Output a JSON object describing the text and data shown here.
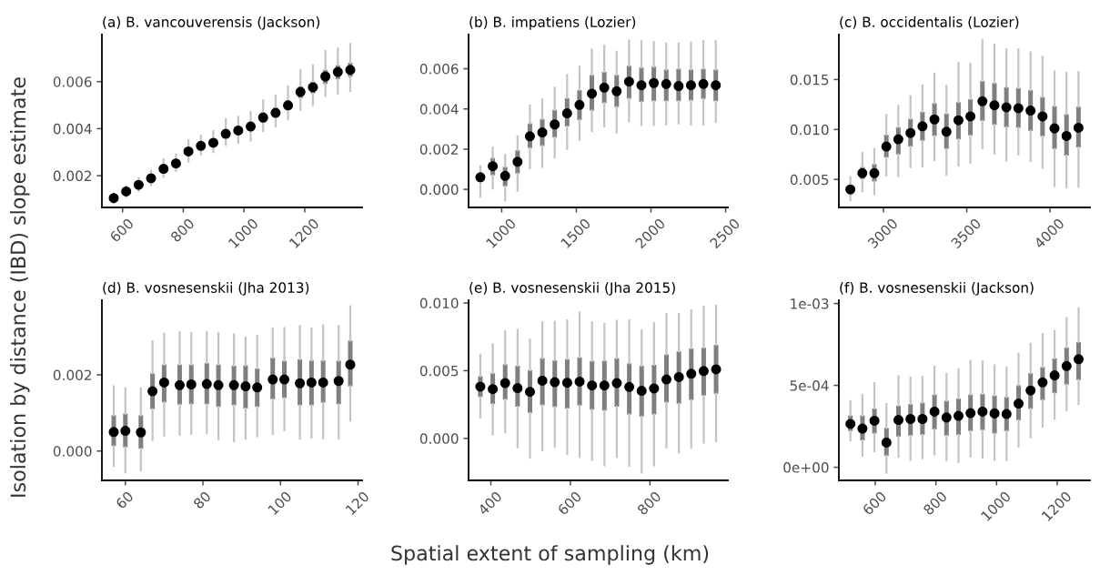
{
  "chart_data": [
    {
      "type": "box",
      "title": "(a) B. vancouverensis (Jackson)",
      "xlabel": "Spatial extent of sampling (km)",
      "ylabel": "Isolation by distance (IBD) slope estimate",
      "color": "#7f7f7f",
      "grid": false,
      "legend": false,
      "x": [
        571,
        612,
        653,
        694,
        735,
        776,
        817,
        858,
        899,
        940,
        981,
        1022,
        1063,
        1104,
        1145,
        1186,
        1227,
        1268,
        1309,
        1350
      ],
      "xlim": [
        532,
        1389
      ],
      "xticks": [
        600,
        800,
        1000,
        1200
      ],
      "ylim": [
        0.00065,
        0.008
      ],
      "yticks": [
        0.002,
        0.004,
        0.006
      ],
      "boxes": [
        {
          "low": 0.00085,
          "q1": 0.00098,
          "median": 0.00105,
          "q3": 0.00112,
          "high": 0.00125
        },
        {
          "low": 0.0011,
          "q1": 0.00125,
          "median": 0.00133,
          "q3": 0.0014,
          "high": 0.00155
        },
        {
          "low": 0.00135,
          "q1": 0.00152,
          "median": 0.00161,
          "q3": 0.0017,
          "high": 0.00188
        },
        {
          "low": 0.0016,
          "q1": 0.0018,
          "median": 0.00189,
          "q3": 0.00198,
          "high": 0.0022
        },
        {
          "low": 0.00195,
          "q1": 0.00218,
          "median": 0.00229,
          "q3": 0.0024,
          "high": 0.0027
        },
        {
          "low": 0.0022,
          "q1": 0.0024,
          "median": 0.00252,
          "q3": 0.00265,
          "high": 0.0029
        },
        {
          "low": 0.0026,
          "q1": 0.0029,
          "median": 0.00303,
          "q3": 0.00318,
          "high": 0.0035
        },
        {
          "low": 0.0029,
          "q1": 0.00313,
          "median": 0.00327,
          "q3": 0.0034,
          "high": 0.0037
        },
        {
          "low": 0.003,
          "q1": 0.00325,
          "median": 0.0034,
          "q3": 0.00355,
          "high": 0.0039
        },
        {
          "low": 0.0033,
          "q1": 0.0036,
          "median": 0.00378,
          "q3": 0.00395,
          "high": 0.0044
        },
        {
          "low": 0.0034,
          "q1": 0.00375,
          "median": 0.00392,
          "q3": 0.0041,
          "high": 0.0045
        },
        {
          "low": 0.0035,
          "q1": 0.0039,
          "median": 0.00409,
          "q3": 0.0043,
          "high": 0.0047
        },
        {
          "low": 0.0039,
          "q1": 0.0043,
          "median": 0.00447,
          "q3": 0.0047,
          "high": 0.0052
        },
        {
          "low": 0.0041,
          "q1": 0.0045,
          "median": 0.00467,
          "q3": 0.0049,
          "high": 0.0054
        },
        {
          "low": 0.0044,
          "q1": 0.0048,
          "median": 0.00499,
          "q3": 0.0052,
          "high": 0.0058
        },
        {
          "low": 0.0048,
          "q1": 0.0053,
          "median": 0.00556,
          "q3": 0.0058,
          "high": 0.0065
        },
        {
          "low": 0.005,
          "q1": 0.0055,
          "median": 0.00576,
          "q3": 0.006,
          "high": 0.0067
        },
        {
          "low": 0.0054,
          "q1": 0.0059,
          "median": 0.00622,
          "q3": 0.0065,
          "high": 0.0073
        },
        {
          "low": 0.0055,
          "q1": 0.0061,
          "median": 0.00641,
          "q3": 0.0067,
          "high": 0.0074
        },
        {
          "low": 0.0056,
          "q1": 0.0062,
          "median": 0.0065,
          "q3": 0.0068,
          "high": 0.0076
        }
      ]
    },
    {
      "type": "box",
      "title": "(b) B. impatiens (Lozier)",
      "color": "#7f7f7f",
      "grid": false,
      "legend": false,
      "x": [
        857,
        940,
        1023,
        1106,
        1189,
        1272,
        1355,
        1438,
        1521,
        1604,
        1687,
        1770,
        1853,
        1936,
        2019,
        2102,
        2185,
        2268,
        2351,
        2434
      ],
      "xlim": [
        778,
        2515
      ],
      "xticks": [
        1000,
        1500,
        2000,
        2500
      ],
      "ylim": [
        -0.0009,
        0.0077
      ],
      "yticks": [
        {
          "value": 0,
          "label": "0.000"
        },
        0.002,
        0.004,
        0.006
      ],
      "boxes": [
        {
          "low": -0.00037,
          "q1": 0.00037,
          "median": 0.0006,
          "q3": 0.00082,
          "high": 0.00115
        },
        {
          "low": 4e-05,
          "q1": 0.0007,
          "median": 0.00115,
          "q3": 0.00156,
          "high": 0.00208
        },
        {
          "low": -0.00055,
          "q1": 0.00015,
          "median": 0.00067,
          "q3": 0.00112,
          "high": 0.00171
        },
        {
          "low": -7e-05,
          "q1": 0.00079,
          "median": 0.00137,
          "q3": 0.00194,
          "high": 0.00264
        },
        {
          "low": 0.00104,
          "q1": 0.00205,
          "median": 0.00264,
          "q3": 0.00328,
          "high": 0.00417
        },
        {
          "low": 0.00112,
          "q1": 0.00216,
          "median": 0.00283,
          "q3": 0.0035,
          "high": 0.00447
        },
        {
          "low": 0.00159,
          "q1": 0.00258,
          "median": 0.00323,
          "q3": 0.00395,
          "high": 0.00506
        },
        {
          "low": 0.00201,
          "q1": 0.00313,
          "median": 0.00378,
          "q3": 0.00454,
          "high": 0.00569
        },
        {
          "low": 0.00246,
          "q1": 0.00345,
          "median": 0.0042,
          "q3": 0.00494,
          "high": 0.0061
        },
        {
          "low": 0.0029,
          "q1": 0.00392,
          "median": 0.00476,
          "q3": 0.00569,
          "high": 0.00695
        },
        {
          "low": 0.00313,
          "q1": 0.00429,
          "median": 0.00506,
          "q3": 0.00584,
          "high": 0.00715
        },
        {
          "low": 0.00283,
          "q1": 0.0041,
          "median": 0.00488,
          "q3": 0.00569,
          "high": 0.00685
        },
        {
          "low": 0.00338,
          "q1": 0.00451,
          "median": 0.00536,
          "q3": 0.00615,
          "high": 0.0074
        },
        {
          "low": 0.0032,
          "q1": 0.00435,
          "median": 0.00518,
          "q3": 0.00606,
          "high": 0.00737
        },
        {
          "low": 0.0032,
          "q1": 0.00439,
          "median": 0.00529,
          "q3": 0.0061,
          "high": 0.00733
        },
        {
          "low": 0.00323,
          "q1": 0.00439,
          "median": 0.00524,
          "q3": 0.00596,
          "high": 0.00725
        },
        {
          "low": 0.00328,
          "q1": 0.00439,
          "median": 0.00514,
          "q3": 0.006,
          "high": 0.00725
        },
        {
          "low": 0.00323,
          "q1": 0.00442,
          "median": 0.00518,
          "q3": 0.00596,
          "high": 0.0073
        },
        {
          "low": 0.00323,
          "q1": 0.0045,
          "median": 0.00524,
          "q3": 0.006,
          "high": 0.00737
        },
        {
          "low": 0.00335,
          "q1": 0.00439,
          "median": 0.00518,
          "q3": 0.00596,
          "high": 0.00737
        }
      ]
    },
    {
      "type": "box",
      "title": "(c) B. occidentalis (Lozier)",
      "color": "#7f7f7f",
      "grid": false,
      "legend": false,
      "x": [
        2801,
        2873,
        2945,
        3017,
        3089,
        3162,
        3234,
        3306,
        3378,
        3450,
        3522,
        3594,
        3666,
        3738,
        3810,
        3883,
        3955,
        4027,
        4099,
        4171
      ],
      "xlim": [
        2732,
        4240
      ],
      "xticks": [
        3000,
        3500,
        4000
      ],
      "ylim": [
        0.0022,
        0.0195
      ],
      "yticks": [
        0.005,
        {
          "value": 0.01,
          "label": "0.010"
        },
        0.015
      ],
      "boxes": [
        {
          "low": 0.00292,
          "q1": 0.00352,
          "median": 0.004,
          "q3": 0.00443,
          "high": 0.00524
        },
        {
          "low": 0.00382,
          "q1": 0.00503,
          "median": 0.00563,
          "q3": 0.00624,
          "high": 0.00766
        },
        {
          "low": 0.00352,
          "q1": 0.00479,
          "median": 0.00563,
          "q3": 0.00654,
          "high": 0.00805
        },
        {
          "low": 0.00539,
          "q1": 0.0072,
          "median": 0.00829,
          "q3": 0.00947,
          "high": 0.01146
        },
        {
          "low": 0.00533,
          "q1": 0.00751,
          "median": 0.00902,
          "q3": 0.01023,
          "high": 0.01237
        },
        {
          "low": 0.00624,
          "q1": 0.00829,
          "median": 0.00965,
          "q3": 0.01107,
          "high": 0.01334
        },
        {
          "low": 0.0063,
          "q1": 0.00887,
          "median": 0.01032,
          "q3": 0.01177,
          "high": 0.0144
        },
        {
          "low": 0.00693,
          "q1": 0.00935,
          "median": 0.01101,
          "q3": 0.01264,
          "high": 0.0156
        },
        {
          "low": 0.00548,
          "q1": 0.00805,
          "median": 0.00977,
          "q3": 0.01159,
          "high": 0.0144
        },
        {
          "low": 0.00639,
          "q1": 0.00902,
          "median": 0.01092,
          "q3": 0.01273,
          "high": 0.01666
        },
        {
          "low": 0.00669,
          "q1": 0.00941,
          "median": 0.01131,
          "q3": 0.01304,
          "high": 0.01657
        },
        {
          "low": 0.00814,
          "q1": 0.01086,
          "median": 0.01282,
          "q3": 0.01485,
          "high": 0.01893
        },
        {
          "low": 0.0076,
          "q1": 0.01047,
          "median": 0.01243,
          "q3": 0.01464,
          "high": 0.01847
        },
        {
          "low": 0.0069,
          "q1": 0.01023,
          "median": 0.01222,
          "q3": 0.01424,
          "high": 0.01802
        },
        {
          "low": 0.00751,
          "q1": 0.01017,
          "median": 0.01213,
          "q3": 0.01415,
          "high": 0.01802
        },
        {
          "low": 0.00684,
          "q1": 0.00986,
          "median": 0.01189,
          "q3": 0.01394,
          "high": 0.01772
        },
        {
          "low": 0.00618,
          "q1": 0.00932,
          "median": 0.01131,
          "q3": 0.01325,
          "high": 0.01727
        },
        {
          "low": 0.00434,
          "q1": 0.00805,
          "median": 0.01011,
          "q3": 0.01234,
          "high": 0.01581
        },
        {
          "low": 0.00421,
          "q1": 0.00739,
          "median": 0.00935,
          "q3": 0.01153,
          "high": 0.01566
        },
        {
          "low": 0.00427,
          "q1": 0.0082,
          "median": 0.01017,
          "q3": 0.01228,
          "high": 0.01575
        }
      ]
    },
    {
      "type": "box",
      "title": "(d) B. vosnesenskii (Jha 2013)",
      "color": "#7f7f7f",
      "grid": false,
      "legend": false,
      "x": [
        57,
        60,
        64,
        67,
        70,
        74,
        77,
        81,
        84,
        88,
        91,
        94,
        98,
        101,
        105,
        108,
        111,
        115,
        118
      ],
      "xlim": [
        53.95,
        121.05
      ],
      "xticks": [
        60,
        80,
        100,
        120
      ],
      "ylim": [
        -0.00077,
        0.00396
      ],
      "yticks": [
        {
          "value": 0,
          "label": "0.000"
        },
        0.002
      ],
      "boxes": [
        {
          "low": -0.00039,
          "q1": 0.00013,
          "median": 0.0005,
          "q3": 0.00094,
          "high": 0.0017
        },
        {
          "low": -0.00056,
          "q1": 0.0001,
          "median": 0.00053,
          "q3": 0.00098,
          "high": 0.00165
        },
        {
          "low": -0.00051,
          "q1": 6e-05,
          "median": 0.00049,
          "q3": 0.00094,
          "high": 0.00165
        },
        {
          "low": 0.00029,
          "q1": 0.0011,
          "median": 0.00157,
          "q3": 0.00204,
          "high": 0.00288
        },
        {
          "low": 0.00041,
          "q1": 0.00128,
          "median": 0.0018,
          "q3": 0.00227,
          "high": 0.00308
        },
        {
          "low": 0.00043,
          "q1": 0.00122,
          "median": 0.00173,
          "q3": 0.00227,
          "high": 0.00312
        },
        {
          "low": 0.00045,
          "q1": 0.00123,
          "median": 0.00175,
          "q3": 0.00227,
          "high": 0.0031
        },
        {
          "low": 0.00047,
          "q1": 0.00123,
          "median": 0.00176,
          "q3": 0.00231,
          "high": 0.00312
        },
        {
          "low": 0.00031,
          "q1": 0.00116,
          "median": 0.00173,
          "q3": 0.00227,
          "high": 0.0031
        },
        {
          "low": 0.00026,
          "q1": 0.0012,
          "median": 0.00173,
          "q3": 0.00224,
          "high": 0.00306
        },
        {
          "low": 0.00033,
          "q1": 0.00112,
          "median": 0.0017,
          "q3": 0.00225,
          "high": 0.00298
        },
        {
          "low": 0.00039,
          "q1": 0.00116,
          "median": 0.00167,
          "q3": 0.00217,
          "high": 0.00302
        },
        {
          "low": 0.00045,
          "q1": 0.00136,
          "median": 0.00188,
          "q3": 0.00245,
          "high": 0.00322
        },
        {
          "low": 0.00055,
          "q1": 0.00139,
          "median": 0.00188,
          "q3": 0.00237,
          "high": 0.00323
        },
        {
          "low": 0.00033,
          "q1": 0.0012,
          "median": 0.00178,
          "q3": 0.00241,
          "high": 0.00328
        },
        {
          "low": 0.00035,
          "q1": 0.0012,
          "median": 0.0018,
          "q3": 0.00238,
          "high": 0.00322
        },
        {
          "low": 0.00033,
          "q1": 0.00127,
          "median": 0.0018,
          "q3": 0.00238,
          "high": 0.0033
        },
        {
          "low": 0.00033,
          "q1": 0.00123,
          "median": 0.00184,
          "q3": 0.00237,
          "high": 0.00328
        },
        {
          "low": 0.0008,
          "q1": 0.0017,
          "median": 0.00227,
          "q3": 0.0029,
          "high": 0.0038
        }
      ]
    },
    {
      "type": "box",
      "title": "(e) B. vosnesenskii (Jha 2015)",
      "color": "#7f7f7f",
      "grid": false,
      "legend": false,
      "x": [
        373.6,
        404.8,
        436,
        467.2,
        498.4,
        529.6,
        560.8,
        592,
        623.2,
        654.4,
        685.6,
        716.8,
        748,
        779.2,
        810.4,
        841.6,
        872.8,
        904,
        935.2,
        966.4
      ],
      "xlim": [
        344,
        996
      ],
      "xticks": [
        400,
        600,
        800
      ],
      "ylim": [
        -0.0031,
        0.0102
      ],
      "yticks": [
        {
          "value": 0,
          "label": "0.000"
        },
        0.005,
        {
          "value": 0.01,
          "label": "0.010"
        }
      ],
      "boxes": [
        {
          "low": 0.00155,
          "q1": 0.00305,
          "median": 0.00382,
          "q3": 0.00459,
          "high": 0.00618
        },
        {
          "low": 0.00029,
          "q1": 0.00254,
          "median": 0.00364,
          "q3": 0.00481,
          "high": 0.00695
        },
        {
          "low": 0.00044,
          "q1": 0.00287,
          "median": 0.00408,
          "q3": 0.00547,
          "high": 0.0079
        },
        {
          "low": -0.00066,
          "q1": 0.00234,
          "median": 0.00371,
          "q3": 0.00536,
          "high": 0.00801
        },
        {
          "low": -0.00143,
          "q1": 0.00188,
          "median": 0.00344,
          "q3": 0.00503,
          "high": 0.00728
        },
        {
          "low": -0.00086,
          "q1": 0.00245,
          "median": 0.00426,
          "q3": 0.00592,
          "high": 0.00857
        },
        {
          "low": -0.0006,
          "q1": 0.00232,
          "median": 0.00415,
          "q3": 0.00576,
          "high": 0.00861
        },
        {
          "low": -0.00115,
          "q1": 0.00221,
          "median": 0.00411,
          "q3": 0.00585,
          "high": 0.00872
        },
        {
          "low": -0.00137,
          "q1": 0.00243,
          "median": 0.00419,
          "q3": 0.00598,
          "high": 0.00929
        },
        {
          "low": -0.00159,
          "q1": 0.00212,
          "median": 0.00391,
          "q3": 0.00572,
          "high": 0.00857
        },
        {
          "low": -0.00199,
          "q1": 0.00205,
          "median": 0.00391,
          "q3": 0.00574,
          "high": 0.00845
        },
        {
          "low": -0.00137,
          "q1": 0.00234,
          "median": 0.00408,
          "q3": 0.00592,
          "high": 0.00868
        },
        {
          "low": -0.00203,
          "q1": 0.00177,
          "median": 0.0038,
          "q3": 0.00554,
          "high": 0.00872
        },
        {
          "low": -0.00252,
          "q1": 0.00161,
          "median": 0.00351,
          "q3": 0.00536,
          "high": 0.00797
        },
        {
          "low": -0.00199,
          "q1": 0.00177,
          "median": 0.00369,
          "q3": 0.00543,
          "high": 0.00852
        },
        {
          "low": -0.00066,
          "q1": 0.00265,
          "median": 0.00435,
          "q3": 0.0062,
          "high": 0.00918
        },
        {
          "low": -0.00104,
          "q1": 0.00256,
          "median": 0.00453,
          "q3": 0.00642,
          "high": 0.00918
        },
        {
          "low": -0.00066,
          "q1": 0.00283,
          "median": 0.00477,
          "q3": 0.00664,
          "high": 0.00945
        },
        {
          "low": -0.00031,
          "q1": 0.00316,
          "median": 0.00497,
          "q3": 0.0067,
          "high": 0.00971
        },
        {
          "low": -0.0002,
          "q1": 0.0033,
          "median": 0.0051,
          "q3": 0.0069,
          "high": 0.0098
        }
      ]
    },
    {
      "type": "box",
      "title": "(f) B. vosnesenskii (Jackson)",
      "color": "#7f7f7f",
      "grid": false,
      "legend": false,
      "x": [
        518.1,
        557.7,
        597.3,
        636.9,
        676.5,
        716.1,
        755.7,
        795.3,
        834.9,
        874.5,
        914.1,
        953.7,
        993.3,
        1032.9,
        1072.5,
        1112.1,
        1151.7,
        1191.3,
        1230.9,
        1270.5
      ],
      "xlim": [
        480,
        1308
      ],
      "xticks": [
        600,
        800,
        1000,
        1200
      ],
      "ylim": [
        -8e-05,
        0.00102
      ],
      "yticks": [
        {
          "value": 0,
          "label": "0e+00"
        },
        {
          "value": 0.0005,
          "label": "5e-04"
        },
        {
          "value": 0.001,
          "label": "1e-03"
        }
      ],
      "boxes": [
        {
          "low": 0.000164,
          "q1": 0.000221,
          "median": 0.000265,
          "q3": 0.000316,
          "high": 0.000404
        },
        {
          "low": 7e-05,
          "q1": 0.000164,
          "median": 0.000236,
          "q3": 0.000316,
          "high": 0.000442
        },
        {
          "low": 9.8e-05,
          "q1": 0.000206,
          "median": 0.000284,
          "q3": 0.000359,
          "high": 0.000514
        },
        {
          "low": -3.4e-05,
          "q1": 7e-05,
          "median": 0.000151,
          "q3": 0.00024,
          "high": 0.000386
        },
        {
          "low": 6.4e-05,
          "q1": 0.000187,
          "median": 0.000289,
          "q3": 0.000376,
          "high": 0.000556
        },
        {
          "low": 4.5e-05,
          "q1": 0.000193,
          "median": 0.000295,
          "q3": 0.000386,
          "high": 0.000548
        },
        {
          "low": 5.5e-05,
          "q1": 0.000198,
          "median": 0.000295,
          "q3": 0.000395,
          "high": 0.000552
        },
        {
          "low": 7.9e-05,
          "q1": 0.000231,
          "median": 0.00034,
          "q3": 0.000444,
          "high": 0.000614
        },
        {
          "low": 4.2e-05,
          "q1": 0.000193,
          "median": 0.000304,
          "q3": 0.000406,
          "high": 0.000571
        },
        {
          "low": 3.2e-05,
          "q1": 0.000198,
          "median": 0.000314,
          "q3": 0.00042,
          "high": 0.000599
        },
        {
          "low": 6.6e-05,
          "q1": 0.000221,
          "median": 0.000331,
          "q3": 0.000444,
          "high": 0.00065
        },
        {
          "low": 6e-05,
          "q1": 0.000227,
          "median": 0.00034,
          "q3": 0.000448,
          "high": 0.000646
        },
        {
          "low": 4.5e-05,
          "q1": 0.000206,
          "median": 0.000329,
          "q3": 0.000438,
          "high": 0.000622
        },
        {
          "low": 4.5e-05,
          "q1": 0.000221,
          "median": 0.000325,
          "q3": 0.000429,
          "high": 0.000609
        },
        {
          "low": 0.000127,
          "q1": 0.000287,
          "median": 0.000389,
          "q3": 0.000501,
          "high": 0.000694
        },
        {
          "low": 0.000183,
          "q1": 0.000357,
          "median": 0.000469,
          "q3": 0.000575,
          "high": 0.000754
        },
        {
          "low": 0.000249,
          "q1": 0.00041,
          "median": 0.000518,
          "q3": 0.000612,
          "high": 0.000813
        },
        {
          "low": 0.000297,
          "q1": 0.000452,
          "median": 0.000561,
          "q3": 0.000665,
          "high": 0.000832
        },
        {
          "low": 0.000348,
          "q1": 0.000505,
          "median": 0.000618,
          "q3": 0.000731,
          "high": 0.000911
        },
        {
          "low": 0.000386,
          "q1": 0.000533,
          "median": 0.00066,
          "q3": 0.000765,
          "high": 0.000971
        }
      ]
    }
  ]
}
